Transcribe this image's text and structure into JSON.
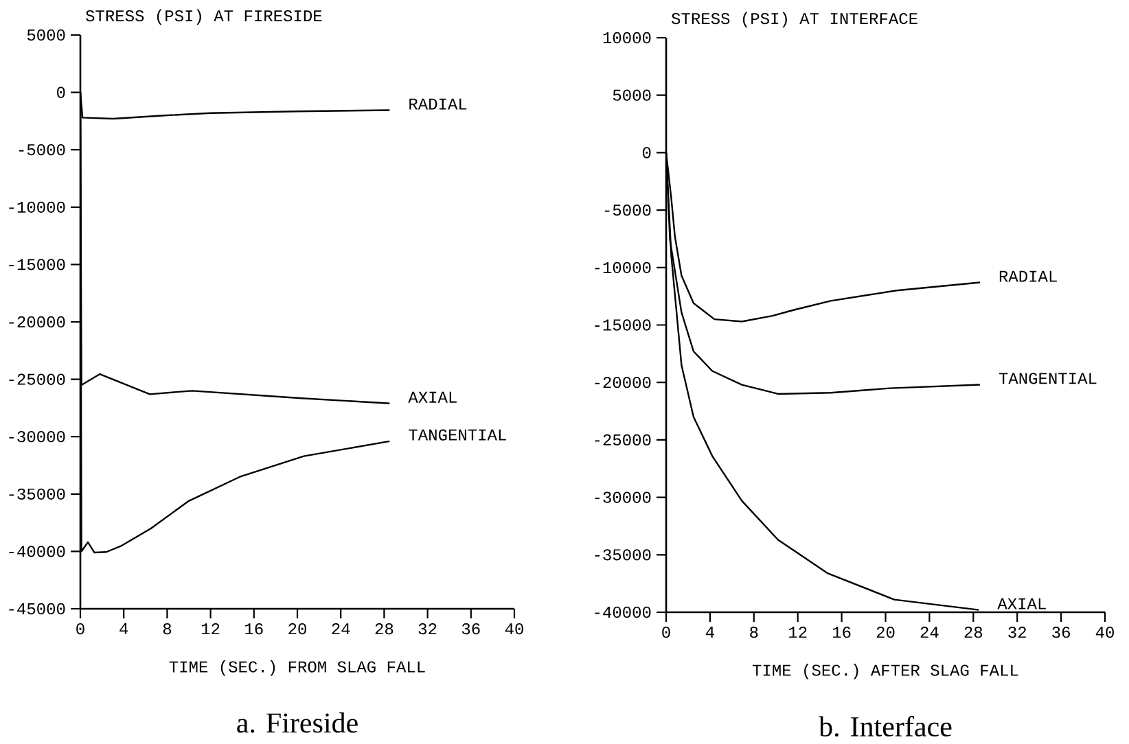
{
  "chart_data": [
    {
      "type": "line",
      "title": "a. Fireside",
      "ylabel": "STRESS (PSI) AT FIRESIDE",
      "xlabel": "TIME (SEC.) FROM SLAG FALL",
      "xlim": [
        0,
        40
      ],
      "ylim": [
        -45000,
        5000
      ],
      "xticks": [
        0,
        4,
        8,
        12,
        16,
        20,
        24,
        28,
        32,
        36,
        40
      ],
      "yticks": [
        -45000,
        -40000,
        -35000,
        -30000,
        -25000,
        -20000,
        -15000,
        -10000,
        -5000,
        0,
        5000
      ],
      "marker": "none",
      "line_style": "solid",
      "series": [
        {
          "name": "RADIAL",
          "color": "#000000",
          "x": [
            0,
            0.2,
            3,
            8,
            12,
            20,
            28.5
          ],
          "values": [
            0,
            -2200,
            -2300,
            -2000,
            -1800,
            -1650,
            -1550
          ]
        },
        {
          "name": "AXIAL",
          "color": "#000000",
          "x": [
            0,
            0.1,
            1.8,
            6.4,
            10.3,
            20.4,
            28.5
          ],
          "values": [
            0,
            -25500,
            -24550,
            -26300,
            -26000,
            -26650,
            -27100
          ]
        },
        {
          "name": "TANGENTIAL",
          "color": "#000000",
          "x": [
            0,
            0.1,
            0.7,
            1.3,
            2.4,
            3.8,
            6.5,
            10,
            14.7,
            20.6,
            28.5
          ],
          "values": [
            0,
            -40000,
            -39200,
            -40100,
            -40050,
            -39500,
            -38000,
            -35600,
            -33500,
            -31700,
            -30400
          ]
        }
      ]
    },
    {
      "type": "line",
      "title": "b. Interface",
      "ylabel": "STRESS (PSI) AT INTERFACE",
      "xlabel": "TIME (SEC.) AFTER SLAG FALL",
      "xlim": [
        0,
        40
      ],
      "ylim": [
        -40000,
        10000
      ],
      "xticks": [
        0,
        4,
        8,
        12,
        16,
        20,
        24,
        28,
        32,
        36,
        40
      ],
      "yticks": [
        -40000,
        -35000,
        -30000,
        -25000,
        -20000,
        -15000,
        -10000,
        -5000,
        0,
        5000,
        10000
      ],
      "marker": "none",
      "line_style": "solid",
      "series": [
        {
          "name": "RADIAL",
          "color": "#000000",
          "x": [
            0,
            0.47,
            0.8,
            1.4,
            2.5,
            4.4,
            6.9,
            9.7,
            11.6,
            15,
            21,
            28.6
          ],
          "values": [
            0,
            -4000,
            -7300,
            -10700,
            -13100,
            -14500,
            -14700,
            -14200,
            -13700,
            -12900,
            -12000,
            -11300
          ]
        },
        {
          "name": "TANGENTIAL",
          "color": "#000000",
          "x": [
            0,
            0.35,
            1.4,
            2.5,
            4.2,
            6.9,
            10.2,
            15,
            20.4,
            28.6
          ],
          "values": [
            0,
            -7600,
            -13900,
            -17300,
            -19000,
            -20200,
            -21000,
            -20900,
            -20500,
            -20200
          ]
        },
        {
          "name": "AXIAL",
          "color": "#000000",
          "x": [
            0,
            0.47,
            1.4,
            2.5,
            4.2,
            6.9,
            10.2,
            14.7,
            20.8,
            28.5
          ],
          "values": [
            0,
            -9000,
            -18500,
            -23000,
            -26400,
            -30300,
            -33700,
            -36600,
            -38900,
            -39800
          ]
        }
      ]
    }
  ]
}
